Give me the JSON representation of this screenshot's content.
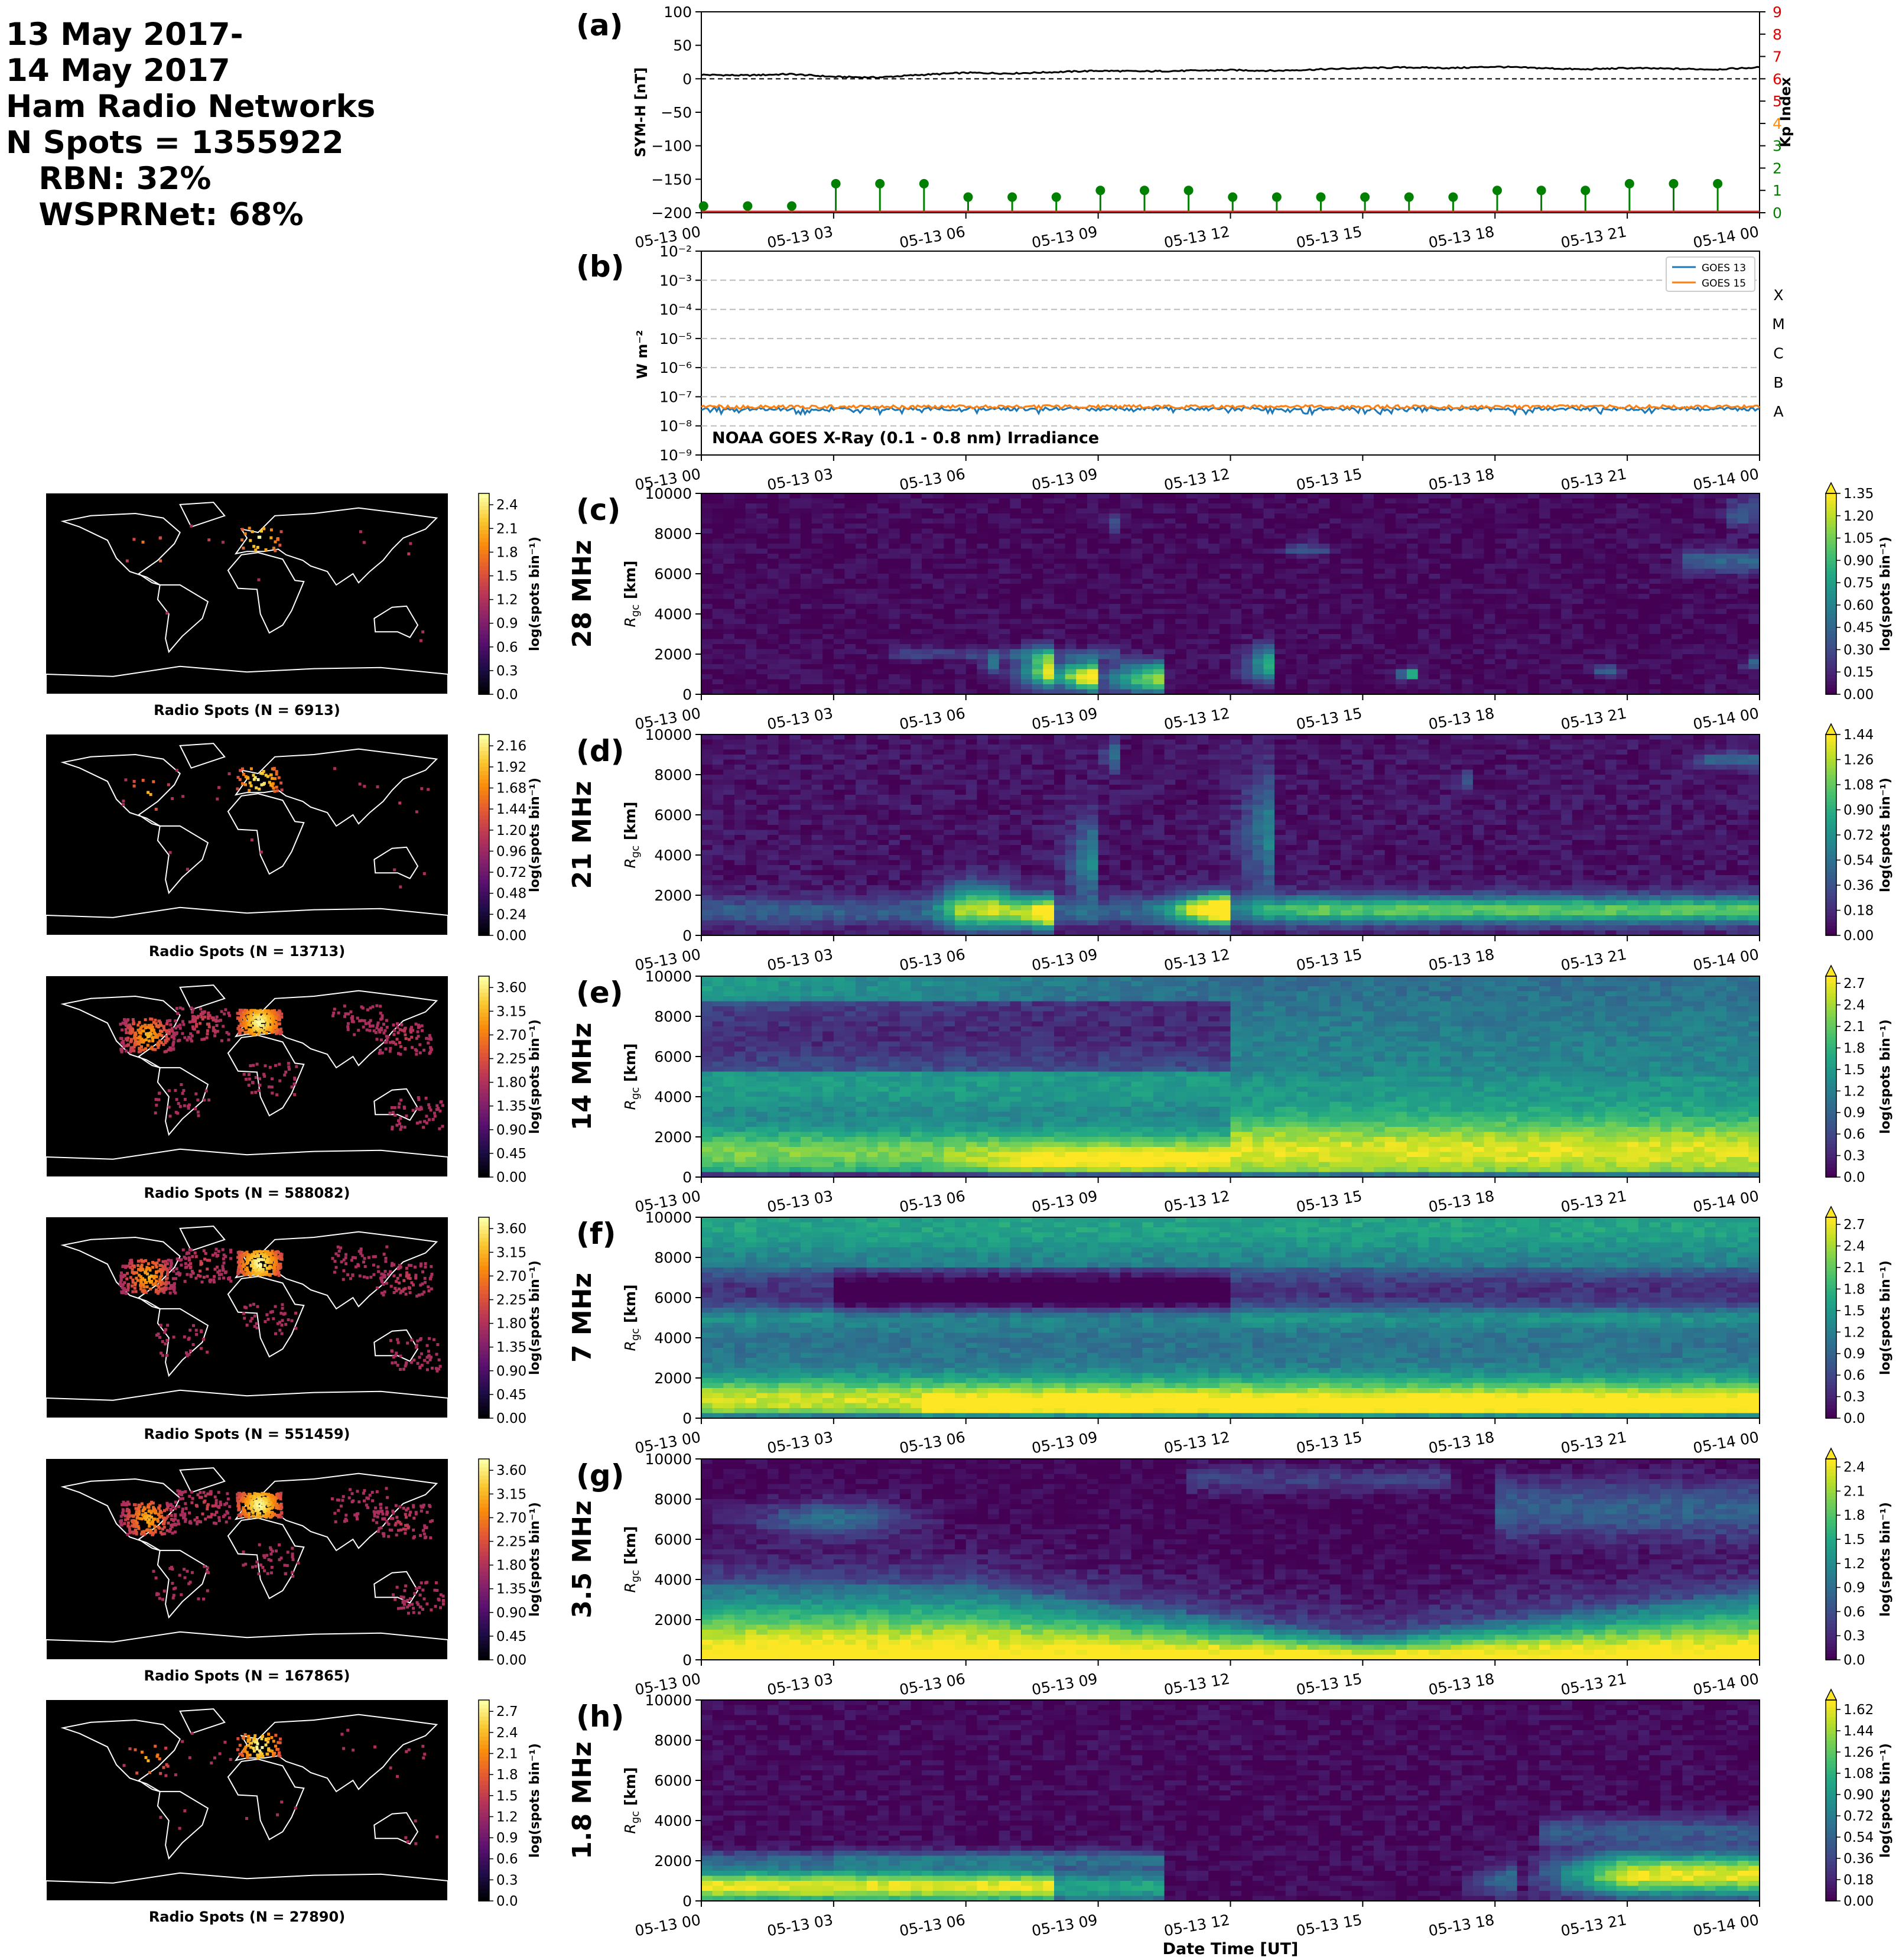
{
  "header": {
    "line1": "13 May 2017-",
    "line2": "14 May 2017",
    "line3": "Ham Radio Networks",
    "line4": "N Spots = 1355922",
    "line5": "   RBN: 32%",
    "line6": "   WSPRNet: 68%"
  },
  "time_ticks": [
    "05-13 00",
    "05-13 03",
    "05-13 06",
    "05-13 09",
    "05-13 12",
    "05-13 15",
    "05-13 18",
    "05-13 21",
    "05-14 00"
  ],
  "xlabel": "Date Time [UT]",
  "colors": {
    "symh_line": "#000000",
    "kp_stem": "#008000",
    "goes13": "#1f77b4",
    "goes15": "#ff7f0e",
    "kp_axis_low": "#008000",
    "kp_axis_mid": "#ff8c00",
    "kp_axis_high": "#e00000",
    "viridis_low": "#440154",
    "viridis_high": "#fde725"
  },
  "chart_data": [
    {
      "id": "a",
      "type": "line",
      "panel_label": "(a)",
      "ylabel": "SYM-H [nT]",
      "ylim": [
        -200,
        100
      ],
      "yticks": [
        "100",
        "50",
        "0",
        "−50",
        "−100",
        "−150",
        "−200"
      ],
      "y2label": "Kp Index",
      "y2lim": [
        0,
        9
      ],
      "y2ticks": [
        "0",
        "1",
        "2",
        "3",
        "4",
        "5",
        "6",
        "7",
        "8",
        "9"
      ],
      "symh": {
        "x_hours": [
          0,
          1,
          2,
          3,
          4,
          5,
          6,
          7,
          8,
          9,
          10,
          11,
          12,
          13,
          14,
          15,
          16,
          17,
          18,
          19,
          20,
          21,
          22,
          23,
          24
        ],
        "values": [
          6,
          5,
          7,
          3,
          2,
          6,
          9,
          8,
          10,
          12,
          11,
          12,
          13,
          12,
          14,
          16,
          17,
          16,
          18,
          16,
          14,
          16,
          15,
          14,
          17
        ]
      },
      "kp": {
        "x_hours": [
          0,
          1,
          2,
          3,
          4,
          5,
          6,
          7,
          8,
          9,
          10,
          11,
          12,
          13,
          14,
          15,
          16,
          17,
          18,
          19,
          20,
          21,
          22,
          23
        ],
        "values": [
          0.3,
          0.3,
          0.3,
          1.3,
          1.3,
          1.3,
          0.7,
          0.7,
          0.7,
          1.0,
          1.0,
          1.0,
          0.7,
          0.7,
          0.7,
          0.7,
          0.7,
          0.7,
          1.0,
          1.0,
          1.0,
          1.3,
          1.3,
          1.3
        ]
      }
    },
    {
      "id": "b",
      "type": "line",
      "panel_label": "(b)",
      "ylabel": "W m⁻²",
      "yscale": "log",
      "ylim_exp": [
        -9,
        -2
      ],
      "yticks": [
        "10⁻²",
        "10⁻³",
        "10⁻⁴",
        "10⁻⁵",
        "10⁻⁶",
        "10⁻⁷",
        "10⁻⁸",
        "10⁻⁹"
      ],
      "flare_classes": [
        "X",
        "M",
        "C",
        "B",
        "A"
      ],
      "annotation": "NOAA GOES X-Ray (0.1 - 0.8 nm) Irradiance",
      "legend_placement": "top-right",
      "series": [
        {
          "name": "GOES 13",
          "value": 3.8e-08
        },
        {
          "name": "GOES 15",
          "value": 4.5e-08
        }
      ]
    },
    {
      "id": "c",
      "type": "heatmap",
      "panel_label": "(c)",
      "band": "28 MHz",
      "ylabel": "R_gc [km]",
      "yticks": [
        "10000",
        "8000",
        "6000",
        "4000",
        "2000",
        "0"
      ],
      "cbar_ticks": [
        "1.35",
        "1.20",
        "1.05",
        "0.90",
        "0.75",
        "0.60",
        "0.45",
        "0.30",
        "0.15",
        "0.00"
      ],
      "cbar_label": "log(spots bin⁻¹)",
      "cbar_max": 1.35,
      "blobs": [
        [
          9,
          6.3,
          900,
          700,
          3.2,
          1
        ],
        [
          10.5,
          7.8,
          800,
          800,
          3.6,
          0.85
        ],
        [
          16.3,
          1.3,
          1000,
          250,
          1.0,
          0.8
        ],
        [
          8,
          6.5,
          1400,
          900,
          1.8,
          0.75
        ],
        [
          13,
          7,
          1500,
          900,
          1.6,
          0.6
        ],
        [
          6.8,
          5.7,
          1500,
          400,
          0.7,
          0.4
        ],
        [
          4.5,
          9.3,
          2000,
          300,
          0.3,
          0.2
        ],
        [
          9.5,
          8.6,
          8500,
          500,
          0.4,
          0.25
        ],
        [
          13.5,
          14,
          7200,
          300,
          0.3,
          0.25
        ],
        [
          22.5,
          24,
          6600,
          600,
          0.8,
          0.3
        ],
        [
          23.5,
          24,
          9000,
          800,
          0.5,
          0.25
        ],
        [
          24,
          24,
          1500,
          300,
          0.5,
          0.35
        ],
        [
          20.5,
          20.5,
          1200,
          300,
          0.4,
          0.3
        ]
      ],
      "floor": 0.02,
      "radio_spots": "Radio Spots (N = 6913)",
      "map_cbar_ticks": [
        "2.4",
        "2.1",
        "1.8",
        "1.5",
        "1.2",
        "0.9",
        "0.6",
        "0.3",
        "0.0"
      ]
    },
    {
      "id": "d",
      "type": "heatmap",
      "panel_label": "(d)",
      "band": "21 MHz",
      "ylabel": "R_gc [km]",
      "yticks": [
        "10000",
        "8000",
        "6000",
        "4000",
        "2000",
        "0"
      ],
      "cbar_ticks": [
        "1.44",
        "1.26",
        "1.08",
        "0.90",
        "0.72",
        "0.54",
        "0.36",
        "0.18",
        "0.00"
      ],
      "cbar_label": "log(spots bin⁻¹)",
      "cbar_max": 1.44,
      "blobs": [
        [
          8,
          6.3,
          1100,
          800,
          2.5,
          0.95
        ],
        [
          12,
          7.5,
          1300,
          800,
          3.6,
          1
        ],
        [
          6,
          6.5,
          1400,
          1200,
          1.5,
          0.6
        ],
        [
          9,
          6.8,
          3800,
          2000,
          1.6,
          0.45
        ],
        [
          13,
          7.2,
          5000,
          3000,
          1.8,
          0.4
        ],
        [
          14,
          24,
          1300,
          700,
          5,
          0.45
        ],
        [
          0,
          24,
          1200,
          700,
          3.5,
          0.25
        ],
        [
          17.5,
          8,
          7700,
          400,
          0.6,
          0.3
        ],
        [
          23,
          24,
          8700,
          400,
          0.8,
          0.3
        ],
        [
          9.5,
          8,
          9000,
          800,
          0.6,
          0.35
        ]
      ],
      "floor": 0.05,
      "radio_spots": "Radio Spots (N = 13713)",
      "map_cbar_ticks": [
        "2.16",
        "1.92",
        "1.68",
        "1.44",
        "1.20",
        "0.96",
        "0.72",
        "0.48",
        "0.24",
        "0.00"
      ]
    },
    {
      "id": "e",
      "type": "heatmap",
      "panel_label": "(e)",
      "band": "14 MHz",
      "ylabel": "R_gc [km]",
      "yticks": [
        "10000",
        "8000",
        "6000",
        "4000",
        "2000",
        "0"
      ],
      "cbar_ticks": [
        "2.7",
        "2.4",
        "2.1",
        "1.8",
        "1.5",
        "1.2",
        "0.9",
        "0.6",
        "0.3",
        "0.0"
      ],
      "cbar_label": "log(spots bin⁻¹)",
      "cbar_max": 2.8,
      "profile": "e",
      "radio_spots": "Radio Spots (N = 588082)",
      "map_cbar_ticks": [
        "3.60",
        "3.15",
        "2.70",
        "2.25",
        "1.80",
        "1.35",
        "0.90",
        "0.45",
        "0.00"
      ]
    },
    {
      "id": "f",
      "type": "heatmap",
      "panel_label": "(f)",
      "band": "7 MHz",
      "ylabel": "R_gc [km]",
      "yticks": [
        "10000",
        "8000",
        "6000",
        "4000",
        "2000",
        "0"
      ],
      "cbar_ticks": [
        "2.7",
        "2.4",
        "2.1",
        "1.8",
        "1.5",
        "1.2",
        "0.9",
        "0.6",
        "0.3",
        "0.0"
      ],
      "cbar_label": "log(spots bin⁻¹)",
      "cbar_max": 2.8,
      "profile": "f",
      "radio_spots": "Radio Spots (N = 551459)",
      "map_cbar_ticks": [
        "3.60",
        "3.15",
        "2.70",
        "2.25",
        "1.80",
        "1.35",
        "0.90",
        "0.45",
        "0.00"
      ]
    },
    {
      "id": "g",
      "type": "heatmap",
      "panel_label": "(g)",
      "band": "3.5 MHz",
      "ylabel": "R_gc [km]",
      "yticks": [
        "10000",
        "8000",
        "6000",
        "4000",
        "2000",
        "0"
      ],
      "cbar_ticks": [
        "2.4",
        "2.1",
        "1.8",
        "1.5",
        "1.2",
        "0.9",
        "0.6",
        "0.3",
        "0.0"
      ],
      "cbar_label": "log(spots bin⁻¹)",
      "cbar_max": 2.5,
      "profile": "g",
      "radio_spots": "Radio Spots (N = 167865)",
      "map_cbar_ticks": [
        "3.60",
        "3.15",
        "2.70",
        "2.25",
        "1.80",
        "1.35",
        "0.90",
        "0.45",
        "0.00"
      ]
    },
    {
      "id": "h",
      "type": "heatmap",
      "panel_label": "(h)",
      "band": "1.8 MHz",
      "ylabel": "R_gc [km]",
      "yticks": [
        "10000",
        "8000",
        "6000",
        "4000",
        "2000",
        "0"
      ],
      "cbar_ticks": [
        "1.62",
        "1.44",
        "1.26",
        "1.08",
        "0.90",
        "0.72",
        "0.54",
        "0.36",
        "0.18",
        "0.00"
      ],
      "cbar_label": "log(spots bin⁻¹)",
      "cbar_max": 1.7,
      "profile": "h",
      "radio_spots": "Radio Spots (N = 27890)",
      "map_cbar_ticks": [
        "2.7",
        "2.4",
        "2.1",
        "1.8",
        "1.5",
        "1.2",
        "0.9",
        "0.6",
        "0.3",
        "0.0"
      ]
    }
  ]
}
